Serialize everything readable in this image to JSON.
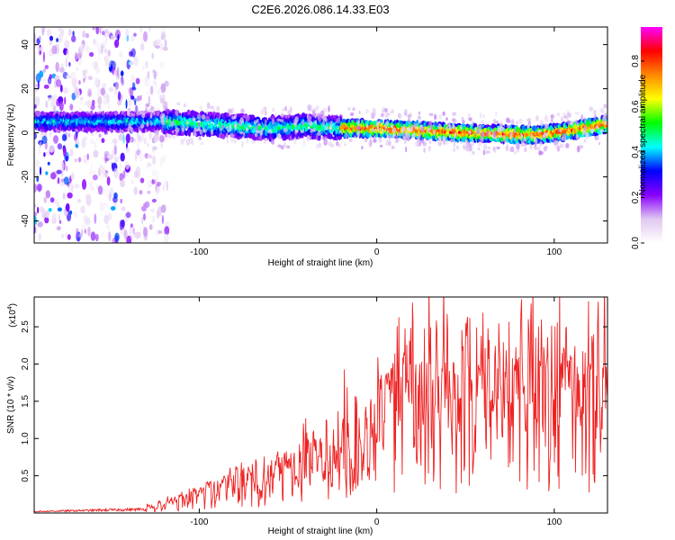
{
  "title": "C2E6.2026.086.14.33.E03",
  "chart_data": [
    {
      "type": "heatmap",
      "xlabel": "Height of straight line (km)",
      "ylabel": "Frequency (Hz)",
      "xlim": [
        -193,
        130
      ],
      "ylim": [
        -50,
        48
      ],
      "xticks": [
        -100,
        0,
        100
      ],
      "yticks": [
        40,
        20,
        0,
        -20,
        -40
      ],
      "center_line": [
        [
          -193,
          5
        ],
        [
          -120,
          5
        ],
        [
          -60,
          2
        ],
        [
          -40,
          3
        ],
        [
          -20,
          2
        ],
        [
          0,
          2
        ],
        [
          50,
          0
        ],
        [
          90,
          -1
        ],
        [
          110,
          1
        ],
        [
          130,
          4
        ]
      ],
      "noise_region_x": [
        -193,
        -118
      ],
      "colorbar": {
        "label": "Normalized spectral amplitude",
        "range": [
          0.0,
          0.95
        ],
        "ticks": [
          0.0,
          0.2,
          0.4,
          0.6,
          0.8
        ],
        "colors": [
          "#ffffff",
          "#e0c8f0",
          "#8800ff",
          "#0000ff",
          "#00ffff",
          "#00ff00",
          "#ffff00",
          "#ff8800",
          "#ff0000",
          "#ff00ff"
        ]
      }
    },
    {
      "type": "line",
      "xlabel": "Height of straight line (km)",
      "ylabel": "SNR (10 * v/v)",
      "scale_label": "(x10",
      "scale_exp": "4",
      "scale_close": ")",
      "xlim": [
        -193,
        130
      ],
      "ylim": [
        0,
        2.9
      ],
      "xticks": [
        -100,
        0,
        100
      ],
      "yticks": [
        0.5,
        1.0,
        1.5,
        2.0,
        2.5
      ],
      "ytick_labels": [
        "0.5",
        "1.0",
        "1.5",
        "2.0",
        "2.5"
      ],
      "color": "#ee2222",
      "envelope": [
        [
          -193,
          0.02
        ],
        [
          -130,
          0.05
        ],
        [
          -110,
          0.15
        ],
        [
          -80,
          0.35
        ],
        [
          -60,
          0.45
        ],
        [
          -40,
          0.55
        ],
        [
          -25,
          0.8
        ],
        [
          -15,
          0.85
        ],
        [
          0,
          0.95
        ],
        [
          20,
          1.4
        ],
        [
          40,
          1.5
        ],
        [
          60,
          1.5
        ],
        [
          80,
          1.45
        ],
        [
          100,
          1.5
        ],
        [
          120,
          1.55
        ],
        [
          130,
          1.6
        ]
      ]
    }
  ]
}
